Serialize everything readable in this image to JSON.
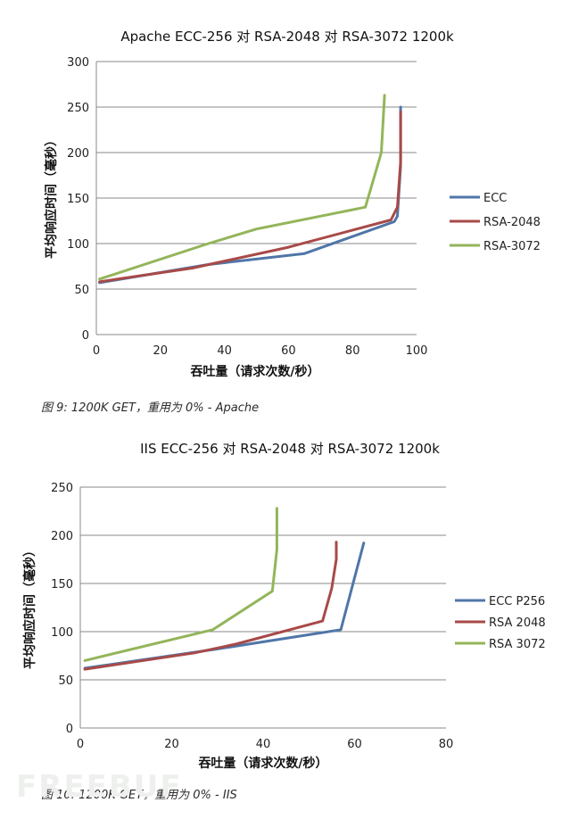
{
  "chart_data": [
    {
      "type": "line",
      "title": "Apache ECC-256 对 RSA-2048 对 RSA-3072 1200k",
      "xlabel": "吞吐量（请求次数/秒）",
      "ylabel": "平均响应时间（毫秒）",
      "xlim": [
        0,
        100
      ],
      "ylim": [
        0,
        300
      ],
      "xticks": [
        "0",
        "20",
        "40",
        "60",
        "80",
        "100"
      ],
      "yticks": [
        "0",
        "50",
        "100",
        "150",
        "200",
        "250",
        "300"
      ],
      "grid": true,
      "legend": "right",
      "series": [
        {
          "name": "ECC",
          "color": "#4f76a8",
          "points": [
            [
              1,
              57
            ],
            [
              35,
              77
            ],
            [
              65,
              89
            ],
            [
              93,
              124
            ],
            [
              94,
              130
            ],
            [
              95,
              185
            ],
            [
              95,
              250
            ]
          ]
        },
        {
          "name": "RSA-2048",
          "color": "#a84a48",
          "points": [
            [
              1,
              58
            ],
            [
              30,
              73
            ],
            [
              60,
              96
            ],
            [
              92,
              126
            ],
            [
              94,
              140
            ],
            [
              95,
              190
            ],
            [
              95,
              245
            ]
          ]
        },
        {
          "name": "RSA-3072",
          "color": "#93b55a",
          "points": [
            [
              1,
              61
            ],
            [
              35,
              100
            ],
            [
              50,
              116
            ],
            [
              84,
              140
            ],
            [
              89,
              200
            ],
            [
              90,
              263
            ]
          ]
        }
      ]
    },
    {
      "type": "line",
      "title": "IIS ECC-256 对 RSA-2048 对 RSA-3072 1200k",
      "xlabel": "吞吐量（请求次数/秒）",
      "ylabel": "平均响应时间（毫秒）",
      "xlim": [
        0,
        80
      ],
      "ylim": [
        0,
        250
      ],
      "xticks": [
        "0",
        "20",
        "40",
        "60",
        "80"
      ],
      "yticks": [
        "0",
        "50",
        "100",
        "150",
        "200",
        "250"
      ],
      "grid": true,
      "legend": "right",
      "series": [
        {
          "name": "ECC P256",
          "color": "#4f76a8",
          "points": [
            [
              1,
              62
            ],
            [
              30,
              82
            ],
            [
              57,
              102
            ],
            [
              62,
              192
            ]
          ]
        },
        {
          "name": "RSA 2048",
          "color": "#a84a48",
          "points": [
            [
              1,
              61
            ],
            [
              25,
              78
            ],
            [
              34,
              87
            ],
            [
              53,
              111
            ],
            [
              55,
              145
            ],
            [
              56,
              175
            ],
            [
              56,
              193
            ]
          ]
        },
        {
          "name": "RSA 3072",
          "color": "#93b55a",
          "points": [
            [
              1,
              70
            ],
            [
              29,
              102
            ],
            [
              42,
              142
            ],
            [
              43,
              185
            ],
            [
              43,
              228
            ]
          ]
        }
      ]
    }
  ],
  "captions": {
    "fig9": "图 9: 1200K GET，重用为 0% - Apache",
    "fig10": "图 10: 1200K GET，重用为 0% - IIS"
  },
  "watermark": "FREEBUF"
}
